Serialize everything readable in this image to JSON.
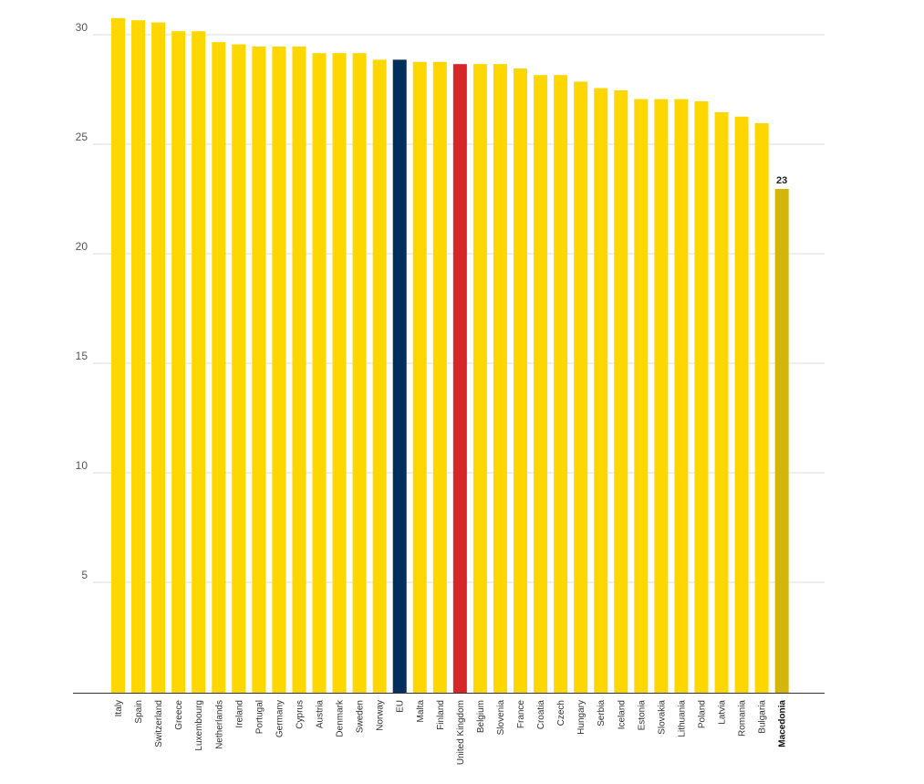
{
  "chart_data": {
    "type": "bar",
    "title": "",
    "xlabel": "",
    "ylabel": "",
    "ylim": [
      0,
      30
    ],
    "yticks": [
      5,
      10,
      15,
      20,
      25,
      30
    ],
    "grid": true,
    "categories": [
      "Italy",
      "Spain",
      "Switzerland",
      "Greece",
      "Luxembourg",
      "Netherlands",
      "Ireland",
      "Portugal",
      "Germany",
      "Cyprus",
      "Austria",
      "Denmark",
      "Sweden",
      "Norway",
      "EU",
      "Malta",
      "Finland",
      "United Kingdom",
      "Belgium",
      "Slovenia",
      "France",
      "Croatia",
      "Czech",
      "Hungary",
      "Serbia",
      "Iceland",
      "Estonia",
      "Slovakia",
      "Lithuania",
      "Poland",
      "Latvia",
      "Romania",
      "Bulgaria",
      "Macedonia"
    ],
    "values": [
      30.8,
      30.7,
      30.6,
      30.2,
      30.2,
      29.7,
      29.6,
      29.5,
      29.5,
      29.5,
      29.2,
      29.2,
      29.2,
      28.9,
      28.9,
      28.8,
      28.8,
      28.7,
      28.7,
      28.7,
      28.5,
      28.2,
      28.2,
      27.9,
      27.6,
      27.5,
      27.1,
      27.1,
      27.1,
      27.0,
      26.5,
      26.3,
      26.0,
      23
    ],
    "colors": {
      "default": "#FFD700",
      "EU": "#002E5D",
      "United Kingdom": "#D7262A",
      "Macedonia": "#D4B50A"
    },
    "highlight": "Macedonia",
    "data_labels": [
      {
        "category": "Macedonia",
        "text": "23"
      }
    ]
  }
}
